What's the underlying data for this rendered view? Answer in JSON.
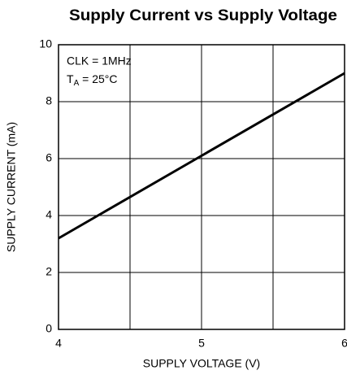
{
  "chart_data": {
    "type": "line",
    "title": "Supply Current vs Supply Voltage",
    "xlabel": "SUPPLY VOLTAGE (V)",
    "ylabel": "SUPPLY CURRENT (mA)",
    "annotation_1": "CLK = 1MHz",
    "annotation_2": {
      "main": "T",
      "sub": "A",
      "rest": " = 25°C"
    },
    "x": [
      4,
      5,
      6
    ],
    "series": [
      {
        "color": "#000000",
        "values": [
          3.2,
          6.1,
          9.0
        ]
      }
    ],
    "xlim": [
      4,
      6
    ],
    "xticks": [
      4,
      5,
      6
    ],
    "xgrid_extra": [
      4.5,
      5.5
    ],
    "ylim": [
      0,
      10
    ],
    "yticks": [
      0,
      2,
      4,
      6,
      8,
      10
    ],
    "grid": true
  }
}
